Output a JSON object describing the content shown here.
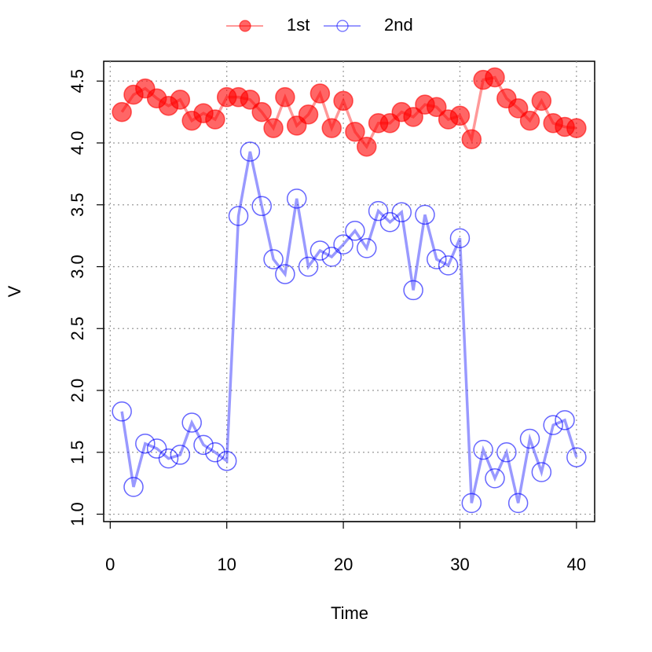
{
  "chart_data": {
    "type": "line",
    "x_label": "Time",
    "y_label": "V",
    "x": [
      1,
      2,
      3,
      4,
      5,
      6,
      7,
      8,
      9,
      10,
      11,
      12,
      13,
      14,
      15,
      16,
      17,
      18,
      19,
      20,
      21,
      22,
      23,
      24,
      25,
      26,
      27,
      28,
      29,
      30,
      31,
      32,
      33,
      34,
      35,
      36,
      37,
      38,
      39,
      40
    ],
    "series": [
      {
        "name": "1st",
        "color": "#ff0000",
        "marker": "filled",
        "values": [
          4.25,
          4.39,
          4.44,
          4.36,
          4.3,
          4.35,
          4.18,
          4.24,
          4.19,
          4.37,
          4.37,
          4.35,
          4.25,
          4.12,
          4.37,
          4.14,
          4.23,
          4.4,
          4.12,
          4.34,
          4.09,
          3.97,
          4.16,
          4.16,
          4.25,
          4.21,
          4.31,
          4.29,
          4.19,
          4.22,
          4.03,
          4.51,
          4.53,
          4.36,
          4.28,
          4.18,
          4.34,
          4.16,
          4.13,
          4.12
        ]
      },
      {
        "name": "2nd",
        "color": "#0000ff",
        "marker": "open",
        "values": [
          1.83,
          1.22,
          1.57,
          1.53,
          1.45,
          1.48,
          1.74,
          1.56,
          1.5,
          1.43,
          3.41,
          3.93,
          3.49,
          3.06,
          2.94,
          3.55,
          3.0,
          3.13,
          3.08,
          3.18,
          3.29,
          3.15,
          3.45,
          3.36,
          3.44,
          2.81,
          3.42,
          3.06,
          3.01,
          3.23,
          1.09,
          1.52,
          1.29,
          1.5,
          1.09,
          1.61,
          1.34,
          1.72,
          1.76,
          1.46
        ]
      }
    ],
    "xlim": [
      -0.56,
      41.56
    ],
    "ylim": [
      0.94,
      4.66
    ],
    "xticks": [
      0,
      10,
      20,
      30,
      40
    ],
    "yticks": [
      {
        "value": 1,
        "label": "1.0"
      },
      1.5,
      {
        "value": 2,
        "label": "2.0"
      },
      2.5,
      {
        "value": 3,
        "label": "3.0"
      },
      3.5,
      {
        "value": 4,
        "label": "4.0"
      },
      4.5
    ],
    "grid": true,
    "legend": "top"
  }
}
